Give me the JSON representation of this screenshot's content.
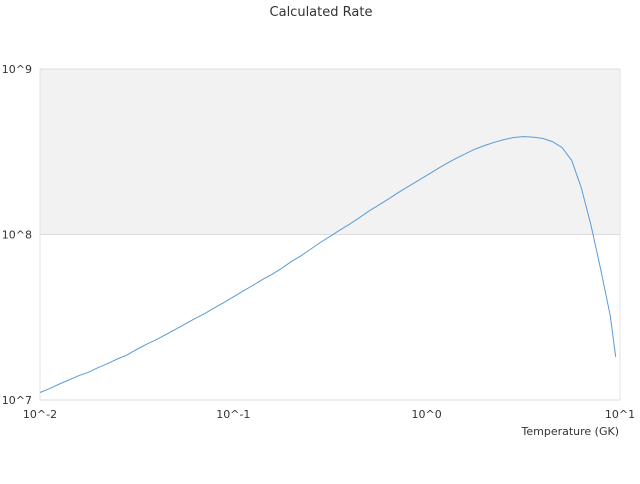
{
  "chart_data": {
    "type": "line",
    "title": "Calculated Rate",
    "xlabel": "Temperature (GK)",
    "ylabel": "",
    "x_scale": "log",
    "y_scale": "log",
    "xlim": [
      0.01,
      10
    ],
    "ylim": [
      10000000,
      1000000000
    ],
    "x_ticks": [
      {
        "value": 0.01,
        "label": "10^-2"
      },
      {
        "value": 0.1,
        "label": "10^-1"
      },
      {
        "value": 1,
        "label": "10^0"
      },
      {
        "value": 10,
        "label": "10^1"
      }
    ],
    "y_ticks": [
      {
        "value": 10000000,
        "label": "10^7"
      },
      {
        "value": 100000000,
        "label": "10^8"
      },
      {
        "value": 1000000000,
        "label": "10^9"
      }
    ],
    "shaded_band": {
      "from": 100000000,
      "to": 1000000000,
      "color": "#f2f2f2"
    },
    "grid": true,
    "legend": "none",
    "line_color": "#5b9bd5",
    "series": [
      {
        "x": [
          0.01,
          0.0112,
          0.0126,
          0.0141,
          0.0158,
          0.0178,
          0.02,
          0.0224,
          0.0251,
          0.0282,
          0.0316,
          0.0355,
          0.0398,
          0.0447,
          0.0501,
          0.0562,
          0.0631,
          0.0708,
          0.0794,
          0.0891,
          0.1,
          0.1122,
          0.1259,
          0.1413,
          0.1585,
          0.1778,
          0.1995,
          0.2239,
          0.2512,
          0.2818,
          0.3162,
          0.3548,
          0.3981,
          0.4467,
          0.5012,
          0.5623,
          0.631,
          0.7079,
          0.7943,
          0.8913,
          1.0,
          1.122,
          1.2589,
          1.4125,
          1.5849,
          1.7783,
          1.9953,
          2.2387,
          2.5119,
          2.8184,
          3.1623,
          3.5481,
          3.9811,
          4.4668,
          5.0119,
          5.6234,
          6.3096,
          7.0795,
          7.9433,
          8.9125,
          9.5
        ],
        "y": [
          11100000,
          11700000,
          12500000,
          13200000,
          14000000,
          14700000,
          15700000,
          16600000,
          17700000,
          18700000,
          20200000,
          21700000,
          23100000,
          24800000,
          26700000,
          28700000,
          31000000,
          33200000,
          35900000,
          38700000,
          42000000,
          45500000,
          49200000,
          53400000,
          57500000,
          62500000,
          68600000,
          74400000,
          81600000,
          89500000,
          97400000,
          106100000,
          115200000,
          125900000,
          138300000,
          150200000,
          163300000,
          178400000,
          193300000,
          209600000,
          227600000,
          246700000,
          267300000,
          287400000,
          307400000,
          328000000,
          345100000,
          360900000,
          374700000,
          385500000,
          390200000,
          387700000,
          380600000,
          364400000,
          335700000,
          280500000,
          191500000,
          113600000,
          61500000,
          32200000,
          18200000
        ]
      }
    ]
  }
}
